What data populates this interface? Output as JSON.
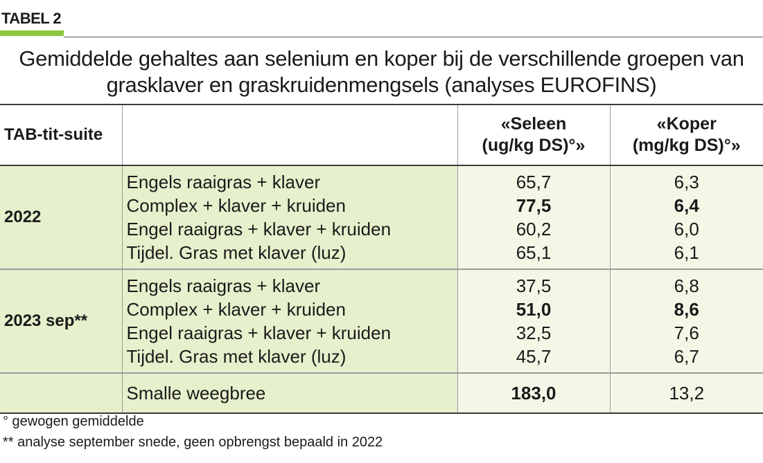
{
  "label": "TABEL 2",
  "title_line1": "Gemiddelde gehaltes aan selenium en koper bij de verschillende groepen van",
  "title_line2": "grasklaver en graskruidenmengsels (analyses EUROFINS)",
  "header": {
    "col1": "TAB-tit-suite",
    "col2": "",
    "col3_line1": "«Seleen",
    "col3_line2": "(ug/kg DS)°»",
    "col4_line1": "«Koper",
    "col4_line2": "(mg/kg DS)°»"
  },
  "groups": [
    {
      "year": "2022",
      "rows": [
        {
          "name": "Engels raaigras + klaver",
          "seleen": "65,7",
          "koper": "6,3"
        },
        {
          "name": "Complex + klaver + kruiden",
          "seleen": "77,5",
          "koper": "6,4"
        },
        {
          "name": "Engel raaigras + klaver + kruiden",
          "seleen": "60,2",
          "koper": "6,0"
        },
        {
          "name": "Tijdel. Gras met klaver (luz)",
          "seleen": "65,1",
          "koper": "6,1"
        }
      ]
    },
    {
      "year": "2023 sep**",
      "rows": [
        {
          "name": "Engels raaigras + klaver",
          "seleen": "37,5",
          "koper": "6,8"
        },
        {
          "name": "Complex + klaver + kruiden",
          "seleen": "51,0",
          "koper": "8,6"
        },
        {
          "name": "Engel raaigras + klaver + kruiden",
          "seleen": "32,5",
          "koper": "7,6"
        },
        {
          "name": "Tijdel. Gras met klaver (luz)",
          "seleen": "45,7",
          "koper": "6,7"
        }
      ]
    }
  ],
  "last_row": {
    "year": "",
    "name": "Smalle weegbree",
    "seleen": "183,0",
    "koper": "13,2"
  },
  "footnotes": [
    "° gewogen gemiddelde",
    "** analyse september snede, geen opbrengst bepaald in 2022"
  ]
}
